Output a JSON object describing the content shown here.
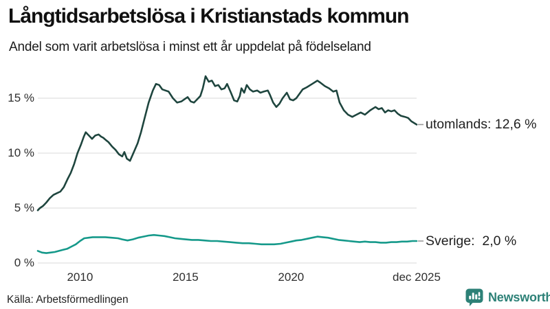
{
  "header": {
    "title": "Långtidsarbetslösa i Kristianstads kommun",
    "subtitle": "Andel som varit arbetslösa i minst ett år uppdelat på födelseland"
  },
  "footer": {
    "source": "Källa: Arbetsförmedlingen",
    "brand": "Newsworthy"
  },
  "colors": {
    "utomlands_line": "#1e453e",
    "sverige_line": "#15998a",
    "gridline": "#e6e6e6",
    "label_tick": "#999999",
    "brand_teal": "#2d8177",
    "icon_bars": "#ffffff"
  },
  "chart_data": {
    "type": "line",
    "title": "Långtidsarbetslösa i Kristianstads kommun",
    "subtitle": "Andel som varit arbetslösa i minst ett år uppdelat på födelseland",
    "unit": "%",
    "grid": "horizontal",
    "legend_position": "labels-at-line-end",
    "x_range": [
      2008.0,
      2025.95
    ],
    "ylim": [
      0,
      17.5
    ],
    "y_ticks": [
      {
        "value": 0,
        "label": "0 %"
      },
      {
        "value": 5,
        "label": "5 %"
      },
      {
        "value": 10,
        "label": "10 %"
      },
      {
        "value": 15,
        "label": "15 %"
      }
    ],
    "x_ticks": [
      {
        "value": 2010,
        "label": "2010"
      },
      {
        "value": 2015,
        "label": "2015"
      },
      {
        "value": 2020,
        "label": "2020"
      },
      {
        "value": 2025.95,
        "label": "dec 2025"
      }
    ],
    "series": [
      {
        "name": "utomlands",
        "color": "#1e453e",
        "end_value": 12.6,
        "end_label": "utomlands: 12,6 %",
        "points": [
          [
            2008.0,
            4.8
          ],
          [
            2008.1,
            5.0
          ],
          [
            2008.25,
            5.2
          ],
          [
            2008.4,
            5.5
          ],
          [
            2008.57,
            5.9
          ],
          [
            2008.74,
            6.2
          ],
          [
            2008.9,
            6.35
          ],
          [
            2009.07,
            6.5
          ],
          [
            2009.23,
            6.9
          ],
          [
            2009.4,
            7.6
          ],
          [
            2009.56,
            8.2
          ],
          [
            2009.72,
            9.0
          ],
          [
            2009.88,
            10.0
          ],
          [
            2010.05,
            10.8
          ],
          [
            2010.18,
            11.5
          ],
          [
            2010.27,
            11.9
          ],
          [
            2010.42,
            11.6
          ],
          [
            2010.57,
            11.3
          ],
          [
            2010.72,
            11.6
          ],
          [
            2010.88,
            11.7
          ],
          [
            2011.0,
            11.5
          ],
          [
            2011.1,
            11.4
          ],
          [
            2011.22,
            11.2
          ],
          [
            2011.35,
            11.0
          ],
          [
            2011.52,
            10.6
          ],
          [
            2011.68,
            10.3
          ],
          [
            2011.84,
            9.9
          ],
          [
            2012.0,
            9.7
          ],
          [
            2012.1,
            10.1
          ],
          [
            2012.22,
            9.5
          ],
          [
            2012.37,
            9.3
          ],
          [
            2012.55,
            10.1
          ],
          [
            2012.73,
            10.9
          ],
          [
            2012.89,
            11.9
          ],
          [
            2013.05,
            13.1
          ],
          [
            2013.25,
            14.6
          ],
          [
            2013.45,
            15.7
          ],
          [
            2013.6,
            16.3
          ],
          [
            2013.75,
            16.2
          ],
          [
            2013.9,
            15.8
          ],
          [
            2014.05,
            15.7
          ],
          [
            2014.2,
            15.6
          ],
          [
            2014.4,
            15.0
          ],
          [
            2014.6,
            14.6
          ],
          [
            2014.8,
            14.7
          ],
          [
            2014.95,
            14.9
          ],
          [
            2015.1,
            15.1
          ],
          [
            2015.25,
            14.7
          ],
          [
            2015.4,
            14.6
          ],
          [
            2015.55,
            14.9
          ],
          [
            2015.7,
            15.2
          ],
          [
            2015.82,
            15.9
          ],
          [
            2015.95,
            17.0
          ],
          [
            2016.1,
            16.5
          ],
          [
            2016.25,
            16.6
          ],
          [
            2016.4,
            16.1
          ],
          [
            2016.55,
            16.2
          ],
          [
            2016.7,
            15.8
          ],
          [
            2016.85,
            15.9
          ],
          [
            2016.97,
            16.3
          ],
          [
            2017.15,
            15.5
          ],
          [
            2017.3,
            14.8
          ],
          [
            2017.45,
            14.7
          ],
          [
            2017.57,
            15.2
          ],
          [
            2017.65,
            15.9
          ],
          [
            2017.78,
            15.5
          ],
          [
            2017.9,
            16.2
          ],
          [
            2018.05,
            15.8
          ],
          [
            2018.2,
            15.6
          ],
          [
            2018.4,
            15.7
          ],
          [
            2018.55,
            15.5
          ],
          [
            2018.7,
            15.6
          ],
          [
            2018.9,
            15.7
          ],
          [
            2019.0,
            15.3
          ],
          [
            2019.15,
            14.6
          ],
          [
            2019.3,
            14.2
          ],
          [
            2019.45,
            14.5
          ],
          [
            2019.6,
            15.0
          ],
          [
            2019.8,
            15.5
          ],
          [
            2019.95,
            14.9
          ],
          [
            2020.1,
            14.8
          ],
          [
            2020.25,
            15.0
          ],
          [
            2020.4,
            15.4
          ],
          [
            2020.55,
            15.8
          ],
          [
            2020.75,
            16.0
          ],
          [
            2021.0,
            16.3
          ],
          [
            2021.25,
            16.6
          ],
          [
            2021.4,
            16.4
          ],
          [
            2021.6,
            16.1
          ],
          [
            2021.8,
            15.9
          ],
          [
            2022.0,
            15.6
          ],
          [
            2022.15,
            15.7
          ],
          [
            2022.3,
            14.6
          ],
          [
            2022.5,
            13.9
          ],
          [
            2022.7,
            13.5
          ],
          [
            2022.9,
            13.3
          ],
          [
            2023.1,
            13.5
          ],
          [
            2023.3,
            13.7
          ],
          [
            2023.5,
            13.5
          ],
          [
            2023.75,
            13.9
          ],
          [
            2024.0,
            14.2
          ],
          [
            2024.15,
            14.0
          ],
          [
            2024.3,
            14.1
          ],
          [
            2024.45,
            13.7
          ],
          [
            2024.6,
            13.9
          ],
          [
            2024.75,
            13.8
          ],
          [
            2024.9,
            13.9
          ],
          [
            2025.05,
            13.6
          ],
          [
            2025.2,
            13.4
          ],
          [
            2025.4,
            13.3
          ],
          [
            2025.55,
            13.2
          ],
          [
            2025.7,
            12.9
          ],
          [
            2025.95,
            12.6
          ]
        ]
      },
      {
        "name": "Sverige",
        "color": "#15998a",
        "end_value": 2.0,
        "end_label": "Sverige:  2,0 %",
        "points": [
          [
            2008.0,
            1.1
          ],
          [
            2008.2,
            0.95
          ],
          [
            2008.4,
            0.9
          ],
          [
            2008.6,
            0.95
          ],
          [
            2008.8,
            1.0
          ],
          [
            2009.0,
            1.1
          ],
          [
            2009.2,
            1.2
          ],
          [
            2009.4,
            1.3
          ],
          [
            2009.6,
            1.5
          ],
          [
            2009.8,
            1.7
          ],
          [
            2010.0,
            2.0
          ],
          [
            2010.2,
            2.25
          ],
          [
            2010.4,
            2.3
          ],
          [
            2010.6,
            2.35
          ],
          [
            2010.9,
            2.35
          ],
          [
            2011.2,
            2.35
          ],
          [
            2011.5,
            2.3
          ],
          [
            2011.8,
            2.25
          ],
          [
            2012.0,
            2.15
          ],
          [
            2012.25,
            2.05
          ],
          [
            2012.5,
            2.15
          ],
          [
            2012.75,
            2.3
          ],
          [
            2013.0,
            2.4
          ],
          [
            2013.25,
            2.5
          ],
          [
            2013.5,
            2.55
          ],
          [
            2013.75,
            2.5
          ],
          [
            2014.0,
            2.45
          ],
          [
            2014.25,
            2.35
          ],
          [
            2014.5,
            2.25
          ],
          [
            2014.75,
            2.2
          ],
          [
            2015.0,
            2.15
          ],
          [
            2015.3,
            2.1
          ],
          [
            2015.6,
            2.1
          ],
          [
            2015.9,
            2.05
          ],
          [
            2016.2,
            2.0
          ],
          [
            2016.5,
            2.0
          ],
          [
            2016.8,
            1.95
          ],
          [
            2017.1,
            1.9
          ],
          [
            2017.4,
            1.85
          ],
          [
            2017.7,
            1.8
          ],
          [
            2018.0,
            1.8
          ],
          [
            2018.3,
            1.75
          ],
          [
            2018.6,
            1.7
          ],
          [
            2018.9,
            1.7
          ],
          [
            2019.2,
            1.7
          ],
          [
            2019.5,
            1.75
          ],
          [
            2019.75,
            1.85
          ],
          [
            2020.0,
            1.95
          ],
          [
            2020.25,
            2.05
          ],
          [
            2020.5,
            2.1
          ],
          [
            2020.75,
            2.2
          ],
          [
            2021.0,
            2.3
          ],
          [
            2021.25,
            2.4
          ],
          [
            2021.5,
            2.35
          ],
          [
            2021.75,
            2.3
          ],
          [
            2022.0,
            2.2
          ],
          [
            2022.25,
            2.1
          ],
          [
            2022.5,
            2.05
          ],
          [
            2022.75,
            2.0
          ],
          [
            2023.0,
            1.95
          ],
          [
            2023.25,
            1.9
          ],
          [
            2023.5,
            1.95
          ],
          [
            2023.75,
            1.9
          ],
          [
            2024.0,
            1.9
          ],
          [
            2024.25,
            1.85
          ],
          [
            2024.5,
            1.85
          ],
          [
            2024.75,
            1.9
          ],
          [
            2025.0,
            1.9
          ],
          [
            2025.25,
            1.95
          ],
          [
            2025.5,
            1.95
          ],
          [
            2025.75,
            2.0
          ],
          [
            2025.95,
            2.0
          ]
        ]
      }
    ]
  }
}
